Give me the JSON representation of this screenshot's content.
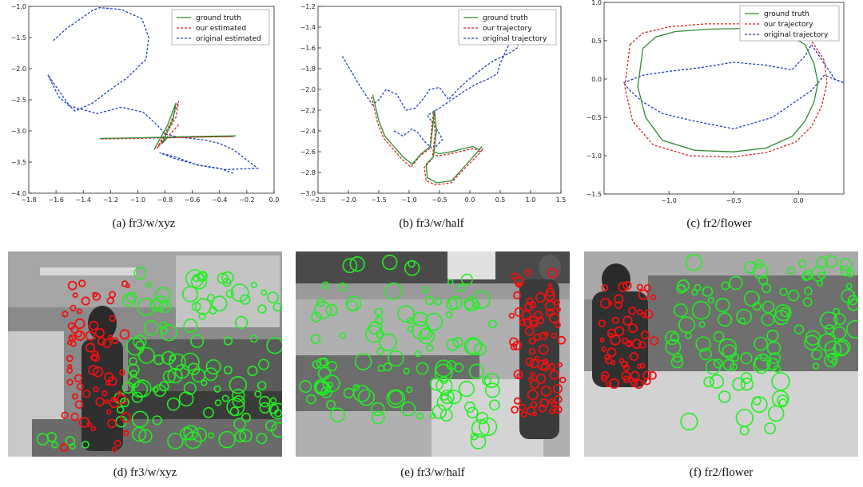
{
  "chart_data": [
    {
      "type": "line",
      "caption": "(a)  fr3/w/xyz",
      "xlim": [
        -1.8,
        0.0
      ],
      "ylim": [
        -4.0,
        -1.0
      ],
      "xticks": [
        -1.8,
        -1.6,
        -1.4,
        -1.2,
        -1.0,
        -0.8,
        -0.6,
        -0.4,
        -0.2,
        0.0
      ],
      "yticks": [
        -1.0,
        -1.5,
        -2.0,
        -2.5,
        -3.0,
        -3.5,
        -4.0
      ],
      "xtick_labels": [
        "−1.8",
        "−1.6",
        "−1.4",
        "−1.2",
        "−1.0",
        "−0.8",
        "−0.6",
        "−0.4",
        "−0.2",
        "0.0"
      ],
      "ytick_labels": [
        "−1.0",
        "−1.5",
        "−2.0",
        "−2.5",
        "−3.0",
        "−3.5",
        "−4.0"
      ],
      "legend_position": "top-right",
      "series": [
        {
          "name": "ground truth",
          "color": "#2e8b2e",
          "style": "solid",
          "x": [
            -1.28,
            -1.0,
            -0.78,
            -0.6,
            -0.28,
            -0.6,
            -0.78,
            -0.82,
            -0.74,
            -0.72,
            -0.78,
            -0.88
          ],
          "y": [
            -3.12,
            -3.11,
            -3.1,
            -3.09,
            -3.08,
            -3.09,
            -3.1,
            -3.2,
            -2.8,
            -2.55,
            -2.9,
            -3.3
          ]
        },
        {
          "name": "our estimated",
          "color": "#d62728",
          "style": "dashed",
          "x": [
            -1.27,
            -1.0,
            -0.78,
            -0.6,
            -0.3,
            -0.62,
            -0.8,
            -0.84,
            -0.72,
            -0.7,
            -0.76,
            -0.86,
            -0.72,
            -0.7
          ],
          "y": [
            -3.13,
            -3.12,
            -3.11,
            -3.1,
            -3.09,
            -3.1,
            -3.11,
            -3.22,
            -2.78,
            -2.52,
            -2.88,
            -3.28,
            -2.95,
            -2.9
          ]
        },
        {
          "name": "original estimated",
          "color": "#1f3fbf",
          "style": "dashed",
          "x": [
            -1.62,
            -1.52,
            -1.42,
            -1.33,
            -1.28,
            -1.12,
            -0.97,
            -0.92,
            -0.94,
            -1.08,
            -1.21,
            -1.33,
            -1.46,
            -1.58,
            -1.66,
            -1.5,
            -1.3,
            -1.12,
            -0.96,
            -0.86,
            -0.8,
            -0.7,
            -0.6,
            -0.5,
            -0.4,
            -0.3,
            -0.12,
            -0.36,
            -0.56,
            -0.72,
            -0.84,
            -0.72,
            -0.55,
            -0.4,
            -0.3
          ],
          "y": [
            -1.55,
            -1.35,
            -1.2,
            -1.06,
            -1.02,
            -1.05,
            -1.2,
            -1.5,
            -1.85,
            -2.15,
            -2.35,
            -2.55,
            -2.68,
            -2.45,
            -2.1,
            -2.6,
            -2.72,
            -2.62,
            -2.7,
            -2.9,
            -3.05,
            -3.1,
            -3.12,
            -3.15,
            -3.2,
            -3.3,
            -3.6,
            -3.62,
            -3.55,
            -3.42,
            -3.35,
            -3.45,
            -3.55,
            -3.6,
            -3.68
          ]
        }
      ]
    },
    {
      "type": "line",
      "caption": "(b)  fr3/w/half",
      "xlim": [
        -2.5,
        1.5
      ],
      "ylim": [
        -3.0,
        -1.2
      ],
      "xticks": [
        -2.5,
        -2.0,
        -1.5,
        -1.0,
        -0.5,
        0.0,
        0.5,
        1.0,
        1.5
      ],
      "yticks": [
        -1.2,
        -1.4,
        -1.6,
        -1.8,
        -2.0,
        -2.2,
        -2.4,
        -2.6,
        -2.8,
        -3.0
      ],
      "xtick_labels": [
        "−2.5",
        "−2.0",
        "−1.5",
        "−1.0",
        "−0.5",
        "0.0",
        "0.5",
        "1.0",
        "1.5"
      ],
      "ytick_labels": [
        "−1.2",
        "−1.4",
        "−1.6",
        "−1.8",
        "−2.0",
        "−2.2",
        "−2.4",
        "−2.6",
        "−2.8",
        "−3.0"
      ],
      "legend_position": "top-right",
      "series": [
        {
          "name": "ground truth",
          "color": "#2e8b2e",
          "style": "solid",
          "x": [
            -1.6,
            -1.5,
            -1.4,
            -1.25,
            -1.1,
            -0.95,
            -0.8,
            -0.65,
            -0.6,
            -0.58,
            -0.55,
            -0.6,
            -0.72,
            -0.7,
            -0.55,
            -0.3,
            -0.1,
            0.1,
            0.2,
            0.15,
            0.05,
            -0.1,
            -0.3,
            -0.5,
            -0.6
          ],
          "y": [
            -2.05,
            -2.3,
            -2.45,
            -2.55,
            -2.65,
            -2.72,
            -2.62,
            -2.55,
            -2.3,
            -2.2,
            -2.4,
            -2.65,
            -2.72,
            -2.85,
            -2.9,
            -2.88,
            -2.75,
            -2.62,
            -2.55,
            -2.58,
            -2.55,
            -2.57,
            -2.6,
            -2.62,
            -2.6
          ]
        },
        {
          "name": "our trajectory",
          "color": "#d62728",
          "style": "dashed",
          "x": [
            -1.62,
            -1.52,
            -1.42,
            -1.27,
            -1.12,
            -0.97,
            -0.82,
            -0.66,
            -0.62,
            -0.6,
            -0.57,
            -0.62,
            -0.75,
            -0.72,
            -0.56,
            -0.31,
            -0.1,
            0.12,
            0.22,
            0.17,
            0.06,
            -0.1,
            -0.32,
            -0.52,
            -0.63
          ],
          "y": [
            -2.07,
            -2.32,
            -2.47,
            -2.57,
            -2.67,
            -2.75,
            -2.64,
            -2.57,
            -2.32,
            -2.22,
            -2.42,
            -2.67,
            -2.75,
            -2.88,
            -2.92,
            -2.9,
            -2.77,
            -2.64,
            -2.57,
            -2.6,
            -2.57,
            -2.59,
            -2.62,
            -2.64,
            -2.62
          ]
        },
        {
          "name": "original trajectory",
          "color": "#1f3fbf",
          "style": "dashed",
          "x": [
            -2.1,
            -1.98,
            -1.86,
            -1.72,
            -1.6,
            -1.5,
            -1.38,
            -1.2,
            -1.05,
            -0.9,
            -0.78,
            -0.66,
            -0.5,
            -0.35,
            -0.2,
            -0.05,
            0.1,
            0.25,
            0.4,
            0.55,
            0.68,
            0.78,
            0.82,
            0.78,
            0.7,
            0.6,
            0.5,
            0.45,
            0.3,
            0.1,
            -0.1,
            -0.3,
            -0.5,
            -0.7,
            -0.58,
            -0.45,
            -0.6,
            -0.75,
            -0.85,
            -0.95,
            -1.1,
            -1.25
          ],
          "y": [
            -1.68,
            -1.8,
            -1.92,
            -2.05,
            -2.15,
            -2.1,
            -2.0,
            -2.05,
            -2.2,
            -2.18,
            -2.1,
            -2.0,
            -1.98,
            -2.1,
            -2.0,
            -1.92,
            -1.85,
            -1.78,
            -1.72,
            -1.68,
            -1.64,
            -1.6,
            -1.52,
            -1.42,
            -1.5,
            -1.62,
            -1.75,
            -1.85,
            -1.9,
            -1.95,
            -2.02,
            -2.1,
            -2.18,
            -2.25,
            -2.35,
            -2.48,
            -2.58,
            -2.5,
            -2.42,
            -2.38,
            -2.45,
            -2.4
          ]
        }
      ]
    },
    {
      "type": "line",
      "caption": "(c)  fr2/flower",
      "xlim": [
        -1.5,
        0.35
      ],
      "ylim": [
        -1.5,
        1.0
      ],
      "xticks": [
        -1.0,
        -0.5,
        0.0
      ],
      "yticks": [
        1.0,
        0.5,
        0.0,
        -0.5,
        -1.0,
        -1.5
      ],
      "xtick_labels": [
        "−1.0",
        "−0.5",
        "0.0"
      ],
      "ytick_labels": [
        "1.0",
        "0.5",
        "0.0",
        "−0.5",
        "−1.0",
        "−1.5"
      ],
      "legend_position": "top-right",
      "series": [
        {
          "name": "ground truth",
          "color": "#2e8b2e",
          "style": "solid",
          "x": [
            -1.2,
            -1.1,
            -0.95,
            -0.7,
            -0.4,
            -0.1,
            0.05,
            0.12,
            0.15,
            0.12,
            0.05,
            -0.05,
            -0.25,
            -0.5,
            -0.8,
            -1.05,
            -1.18,
            -1.24,
            -1.2
          ],
          "y": [
            0.4,
            0.55,
            0.62,
            0.65,
            0.66,
            0.6,
            0.45,
            0.2,
            -0.05,
            -0.3,
            -0.55,
            -0.75,
            -0.9,
            -0.95,
            -0.93,
            -0.8,
            -0.5,
            -0.1,
            0.4
          ]
        },
        {
          "name": "our trajectory",
          "color": "#d62728",
          "style": "dashed",
          "x": [
            -1.3,
            -1.2,
            -1.0,
            -0.72,
            -0.4,
            -0.08,
            0.1,
            0.2,
            0.22,
            0.18,
            0.1,
            -0.02,
            -0.25,
            -0.52,
            -0.84,
            -1.12,
            -1.28,
            -1.34,
            -1.3
          ],
          "y": [
            0.45,
            0.6,
            0.68,
            0.72,
            0.72,
            0.68,
            0.5,
            0.24,
            -0.05,
            -0.35,
            -0.62,
            -0.82,
            -0.96,
            -1.02,
            -1.0,
            -0.86,
            -0.55,
            -0.1,
            0.45
          ]
        },
        {
          "name": "original trajectory",
          "color": "#1f3fbf",
          "style": "dashed",
          "x": [
            -1.35,
            -1.2,
            -1.0,
            -0.75,
            -0.5,
            -0.25,
            -0.05,
            0.05,
            0.1,
            0.18,
            0.28,
            0.35,
            0.2,
            0.1,
            -0.2,
            -0.5,
            -0.8,
            -1.05,
            -1.2,
            -1.3,
            -1.35
          ],
          "y": [
            -0.05,
            0.05,
            0.1,
            0.15,
            0.22,
            0.18,
            0.12,
            0.3,
            0.45,
            0.25,
            0.0,
            -0.05,
            0.05,
            -0.15,
            -0.5,
            -0.65,
            -0.55,
            -0.45,
            -0.3,
            -0.15,
            -0.05
          ]
        }
      ]
    }
  ],
  "photos": [
    {
      "caption": "(d)  fr3/w/xyz"
    },
    {
      "caption": "(e)  fr3/w/half"
    },
    {
      "caption": "(f)  fr2/flower"
    }
  ]
}
